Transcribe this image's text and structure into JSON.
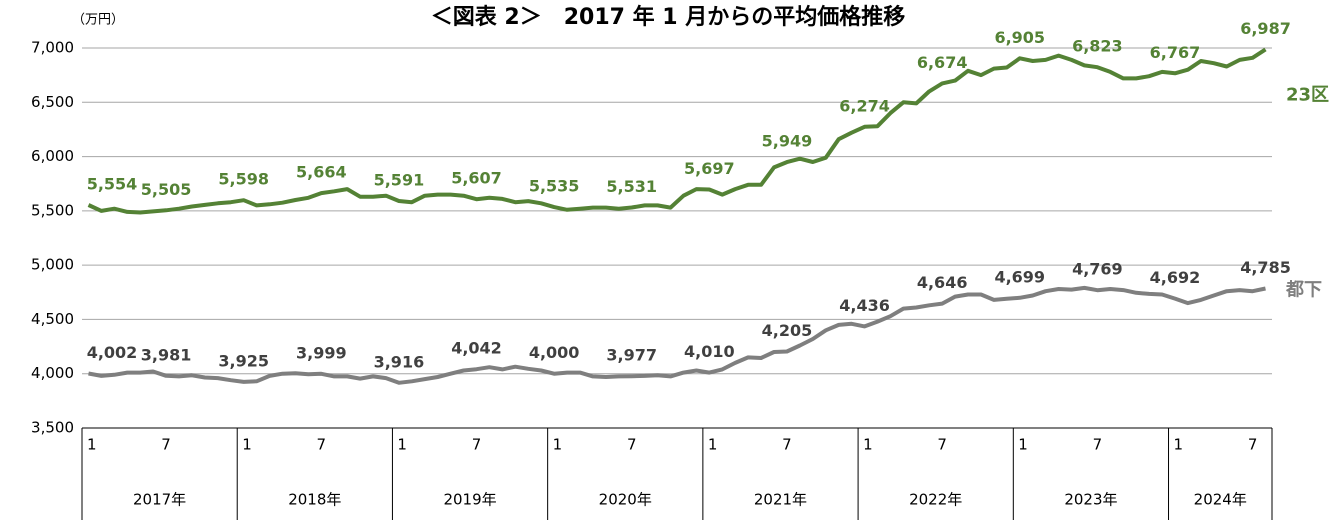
{
  "chart_data": {
    "type": "line",
    "title": "＜図表 2＞　2017 年 1 月からの平均価格推移",
    "y_unit": "（万円）",
    "categories": [
      "1",
      null,
      null,
      null,
      null,
      null,
      "7",
      null,
      null,
      null,
      null,
      null,
      "1",
      null,
      null,
      null,
      null,
      null,
      "7",
      null,
      null,
      null,
      null,
      null,
      "1",
      null,
      null,
      null,
      null,
      null,
      "7",
      null,
      null,
      null,
      null,
      null,
      "1",
      null,
      null,
      null,
      null,
      null,
      "7",
      null,
      null,
      null,
      null,
      null,
      "1",
      null,
      null,
      null,
      null,
      null,
      "7",
      null,
      null,
      null,
      null,
      null,
      "1",
      null,
      null,
      null,
      null,
      null,
      "7",
      null,
      null,
      null,
      null,
      null,
      "1",
      null,
      null,
      null,
      null,
      null,
      "7",
      null,
      null,
      null,
      null,
      null,
      "1",
      null,
      null,
      null,
      null,
      null,
      "7",
      null
    ],
    "x_groups": [
      "2017年",
      "2018年",
      "2019年",
      "2020年",
      "2021年",
      "2022年",
      "2023年",
      "2024年"
    ],
    "ylim": [
      3500,
      7000
    ],
    "yticks": [
      {
        "value": 3500,
        "label": "3,500"
      },
      {
        "value": 4000,
        "label": "4,000"
      },
      {
        "value": 4500,
        "label": "4,500"
      },
      {
        "value": 5000,
        "label": "5,000"
      },
      {
        "value": 5500,
        "label": "5,500"
      },
      {
        "value": 6000,
        "label": "6,000"
      },
      {
        "value": 6500,
        "label": "6,500"
      },
      {
        "value": 7000,
        "label": "7,000"
      }
    ],
    "grid": true,
    "series": [
      {
        "name": "23区",
        "color": "#548235",
        "label_color": "#548235",
        "values": [
          5554,
          5500,
          5520,
          5490,
          5485,
          5495,
          5505,
          5520,
          5540,
          5555,
          5570,
          5580,
          5598,
          5550,
          5560,
          5575,
          5600,
          5620,
          5664,
          5680,
          5700,
          5630,
          5630,
          5640,
          5591,
          5580,
          5640,
          5650,
          5650,
          5640,
          5607,
          5620,
          5610,
          5580,
          5590,
          5570,
          5535,
          5510,
          5520,
          5530,
          5530,
          5520,
          5531,
          5550,
          5550,
          5530,
          5640,
          5700,
          5697,
          5650,
          5700,
          5740,
          5740,
          5900,
          5949,
          5980,
          5950,
          5990,
          6160,
          6220,
          6274,
          6280,
          6400,
          6500,
          6490,
          6600,
          6674,
          6700,
          6790,
          6750,
          6810,
          6820,
          6905,
          6880,
          6890,
          6930,
          6890,
          6840,
          6823,
          6780,
          6720,
          6720,
          6740,
          6780,
          6767,
          6800,
          6880,
          6860,
          6830,
          6890,
          6910,
          6987
        ],
        "value_labels": [
          "5,554",
          null,
          null,
          null,
          null,
          null,
          "5,505",
          null,
          null,
          null,
          null,
          null,
          "5,598",
          null,
          null,
          null,
          null,
          null,
          "5,664",
          null,
          null,
          null,
          null,
          null,
          "5,591",
          null,
          null,
          null,
          null,
          null,
          "5,607",
          null,
          null,
          null,
          null,
          null,
          "5,535",
          null,
          null,
          null,
          null,
          null,
          "5,531",
          null,
          null,
          null,
          null,
          null,
          "5,697",
          null,
          null,
          null,
          null,
          null,
          "5,949",
          null,
          null,
          null,
          null,
          null,
          "6,274",
          null,
          null,
          null,
          null,
          null,
          "6,674",
          null,
          null,
          null,
          null,
          null,
          "6,905",
          null,
          null,
          null,
          null,
          null,
          "6,823",
          null,
          null,
          null,
          null,
          null,
          "6,767",
          null,
          null,
          null,
          null,
          null,
          null,
          "6,987"
        ]
      },
      {
        "name": "都下",
        "color": "#7f7f7f",
        "label_color": "#404040",
        "values": [
          4002,
          3980,
          3990,
          4010,
          4010,
          4020,
          3981,
          3975,
          3985,
          3965,
          3960,
          3940,
          3925,
          3930,
          3980,
          4000,
          4005,
          3995,
          3999,
          3975,
          3975,
          3955,
          3975,
          3960,
          3916,
          3930,
          3950,
          3970,
          4000,
          4030,
          4042,
          4060,
          4040,
          4065,
          4045,
          4030,
          4000,
          4010,
          4010,
          3975,
          3970,
          3975,
          3977,
          3980,
          3985,
          3975,
          4010,
          4030,
          4010,
          4040,
          4100,
          4150,
          4145,
          4200,
          4205,
          4260,
          4320,
          4400,
          4450,
          4460,
          4436,
          4480,
          4530,
          4600,
          4610,
          4630,
          4646,
          4710,
          4730,
          4730,
          4680,
          4690,
          4699,
          4720,
          4760,
          4780,
          4775,
          4790,
          4769,
          4780,
          4770,
          4745,
          4735,
          4730,
          4692,
          4650,
          4680,
          4720,
          4760,
          4770,
          4760,
          4785
        ],
        "value_labels": [
          "4,002",
          null,
          null,
          null,
          null,
          null,
          "3,981",
          null,
          null,
          null,
          null,
          null,
          "3,925",
          null,
          null,
          null,
          null,
          null,
          "3,999",
          null,
          null,
          null,
          null,
          null,
          "3,916",
          null,
          null,
          null,
          null,
          null,
          "4,042",
          null,
          null,
          null,
          null,
          null,
          "4,000",
          null,
          null,
          null,
          null,
          null,
          "3,977",
          null,
          null,
          null,
          null,
          null,
          "4,010",
          null,
          null,
          null,
          null,
          null,
          "4,205",
          null,
          null,
          null,
          null,
          null,
          "4,436",
          null,
          null,
          null,
          null,
          null,
          "4,646",
          null,
          null,
          null,
          null,
          null,
          "4,699",
          null,
          null,
          null,
          null,
          null,
          "4,769",
          null,
          null,
          null,
          null,
          null,
          "4,692",
          null,
          null,
          null,
          null,
          null,
          null,
          "4,785"
        ]
      }
    ]
  }
}
